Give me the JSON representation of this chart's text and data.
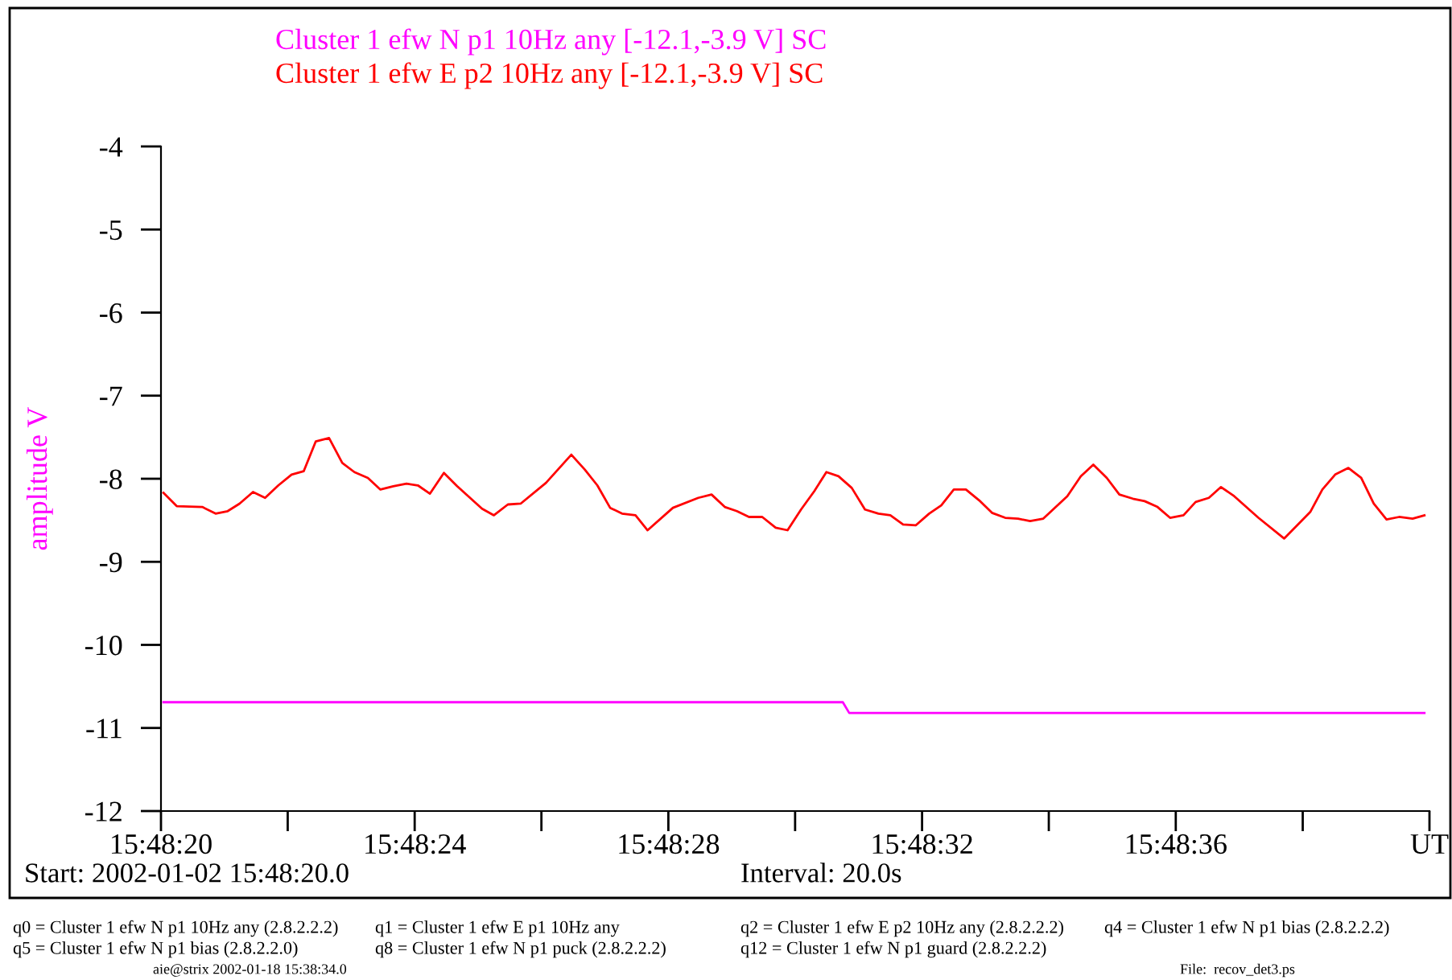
{
  "chart_data": {
    "type": "line",
    "ylabel": "amplitude V",
    "xlim": [
      15.805556,
      15.811111
    ],
    "xticks": [
      {
        "value": 15.805556,
        "label": "15:48:20"
      },
      {
        "value": 15.806111,
        "label": null
      },
      {
        "value": 15.806667,
        "label": "15:48:24"
      },
      {
        "value": 15.807222,
        "label": null
      },
      {
        "value": 15.807778,
        "label": "15:48:28"
      },
      {
        "value": 15.808333,
        "label": null
      },
      {
        "value": 15.808889,
        "label": "15:48:32"
      },
      {
        "value": 15.809444,
        "label": null
      },
      {
        "value": 15.81,
        "label": "15:48:36"
      },
      {
        "value": 15.810556,
        "label": null
      },
      {
        "value": 15.811111,
        "label": "UT"
      }
    ],
    "ylim": [
      -12,
      -4
    ],
    "yticks": [
      -12,
      -11,
      -10,
      -9,
      -8,
      -7,
      -6,
      -5,
      -4
    ],
    "grid": false,
    "marker": "none",
    "line_style": "solid",
    "series": [
      {
        "name": "Cluster 1 efw N p1 10Hz any [-12.1,-3.9 V] SC",
        "color": "#ff00ff",
        "x": [
          15.805567,
          15.808542,
          15.80857,
          15.811089
        ],
        "values": [
          -10.69,
          -10.69,
          -10.82,
          -10.82
        ]
      },
      {
        "name": "Cluster 1 efw E p2 10Hz any [-12.1,-3.9 V] SC",
        "color": "#ff0000",
        "x": [
          15.805567,
          15.805625,
          15.805737,
          15.805795,
          15.805848,
          15.8059,
          15.805959,
          15.806012,
          15.80607,
          15.806128,
          15.806181,
          15.806234,
          15.806292,
          15.80635,
          15.806403,
          15.806462,
          15.806517,
          15.806573,
          15.806631,
          15.806681,
          15.806734,
          15.806795,
          15.806853,
          15.806962,
          15.807014,
          15.807075,
          15.807131,
          15.807242,
          15.807353,
          15.807412,
          15.807467,
          15.807523,
          15.807575,
          15.807634,
          15.807687,
          15.807798,
          15.807909,
          15.807967,
          15.808025,
          15.808078,
          15.808131,
          15.808189,
          15.808248,
          15.8083,
          15.808359,
          15.808417,
          15.80847,
          15.808523,
          15.808581,
          15.808639,
          15.808698,
          15.80875,
          15.808806,
          15.808862,
          15.80892,
          15.808973,
          15.809028,
          15.809081,
          15.809139,
          15.809195,
          15.809253,
          15.809309,
          15.809362,
          15.80942,
          15.809525,
          15.809584,
          15.809639,
          15.809698,
          15.809753,
          15.809812,
          15.809864,
          15.80992,
          15.809975,
          15.810034,
          15.810087,
          15.810145,
          15.810198,
          15.810256,
          15.810362,
          15.810475,
          15.810589,
          15.810642,
          15.810698,
          15.810756,
          15.810812,
          15.810867,
          15.810923,
          15.810978,
          15.811037,
          15.811089
        ],
        "values": [
          -8.17,
          -8.33,
          -8.34,
          -8.42,
          -8.39,
          -8.3,
          -8.16,
          -8.23,
          -8.08,
          -7.95,
          -7.91,
          -7.55,
          -7.51,
          -7.81,
          -7.92,
          -7.99,
          -8.13,
          -8.09,
          -8.06,
          -8.08,
          -8.18,
          -7.93,
          -8.09,
          -8.36,
          -8.44,
          -8.31,
          -8.3,
          -8.05,
          -7.71,
          -7.89,
          -8.08,
          -8.35,
          -8.42,
          -8.44,
          -8.62,
          -8.35,
          -8.23,
          -8.19,
          -8.34,
          -8.39,
          -8.46,
          -8.46,
          -8.59,
          -8.62,
          -8.37,
          -8.15,
          -7.92,
          -7.97,
          -8.11,
          -8.37,
          -8.42,
          -8.44,
          -8.55,
          -8.56,
          -8.42,
          -8.32,
          -8.13,
          -8.13,
          -8.26,
          -8.41,
          -8.47,
          -8.48,
          -8.51,
          -8.48,
          -8.21,
          -7.97,
          -7.83,
          -7.99,
          -8.19,
          -8.24,
          -8.27,
          -8.34,
          -8.47,
          -8.44,
          -8.28,
          -8.23,
          -8.1,
          -8.21,
          -8.47,
          -8.72,
          -8.4,
          -8.13,
          -7.95,
          -7.87,
          -7.99,
          -8.3,
          -8.49,
          -8.46,
          -8.48,
          -8.44
        ]
      }
    ],
    "annotations": [
      "Start: 2002-01-02 15:48:20.0",
      "Interval: 20.0s",
      "q0 = Cluster 1 efw N p1 10Hz any (2.8.2.2.2)",
      "q1 = Cluster 1 efw E p1 10Hz any",
      "q2 = Cluster 1 efw E p2 10Hz any (2.8.2.2.2)",
      "q4 = Cluster 1 efw N p1 bias (2.8.2.2.2)",
      "q5 = Cluster 1 efw N p1 bias (2.8.2.2.0)",
      "q8 = Cluster 1 efw N p1 puck (2.8.2.2.2)",
      "q12 = Cluster 1 efw N p1 guard (2.8.2.2.2)",
      "aie@strix 2002-01-18 15:38:34.0",
      "File:  recov_det3.ps"
    ]
  }
}
